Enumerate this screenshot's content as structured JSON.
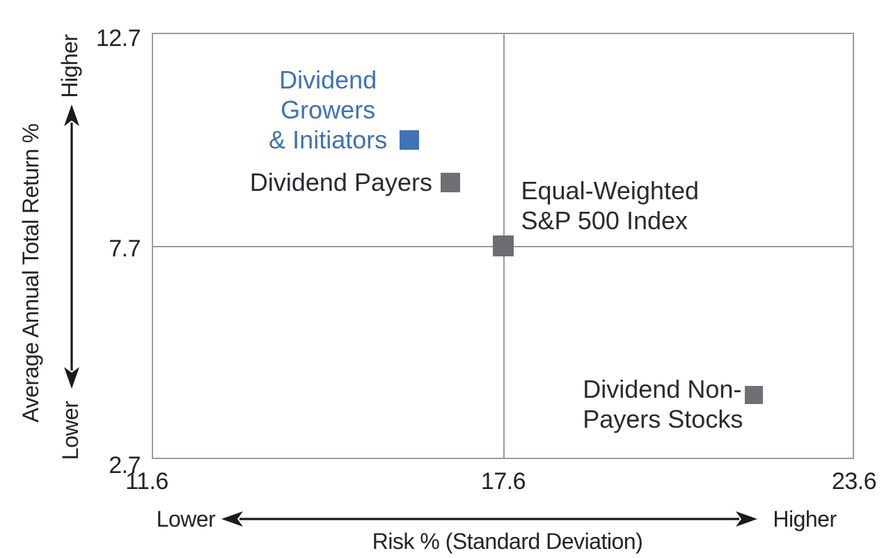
{
  "chart_data": {
    "type": "scatter",
    "title": "",
    "xlabel": "Risk % (Standard Deviation)",
    "ylabel": "Average Annual Total Return %",
    "xlim": [
      11.6,
      23.6
    ],
    "ylim": [
      2.7,
      12.7
    ],
    "x_ticks": [
      "11.6",
      "17.6",
      "23.6"
    ],
    "y_ticks": [
      "12.7",
      "7.7",
      "2.7"
    ],
    "grid": "crosshair reference lines only",
    "reference_lines": {
      "x": 17.6,
      "y": 7.7
    },
    "legend_position": "labels beside markers",
    "annotations": {
      "y_higher": "Higher",
      "y_lower": "Lower",
      "x_lower": "Lower",
      "x_higher": "Higher"
    },
    "points": [
      {
        "id": "growers",
        "label": "Dividend Growers & Initiators",
        "label_lines": [
          "Dividend",
          "Growers",
          "& Initiators"
        ],
        "x": 16.0,
        "y": 10.2,
        "color": "#3E73B6",
        "label_color": "#3C72B8"
      },
      {
        "id": "payers",
        "label": "Dividend Payers",
        "label_lines": [
          "Dividend Payers"
        ],
        "x": 16.7,
        "y": 9.2,
        "color": "#707074",
        "label_color": "#2A2A31"
      },
      {
        "id": "sp500",
        "label": "Equal-Weighted S&P 500 Index",
        "label_lines": [
          "Equal-Weighted",
          "S&P 500 Index"
        ],
        "x": 17.6,
        "y": 7.7,
        "color": "#6E6E72",
        "label_color": "#2A2A31"
      },
      {
        "id": "nonpayers",
        "label": "Dividend Non-Payers Stocks",
        "label_lines": [
          "Dividend Non-",
          "Payers Stocks"
        ],
        "x": 21.9,
        "y": 4.2,
        "color": "#707074",
        "label_color": "#2A2A31"
      }
    ]
  },
  "colors": {
    "accent_blue": "#3E73B6",
    "marker_gray": "#707074",
    "grid_gray": "#9B9B9F",
    "text_dark": "#2A2A31",
    "arrow_black": "#1B1B1E"
  }
}
